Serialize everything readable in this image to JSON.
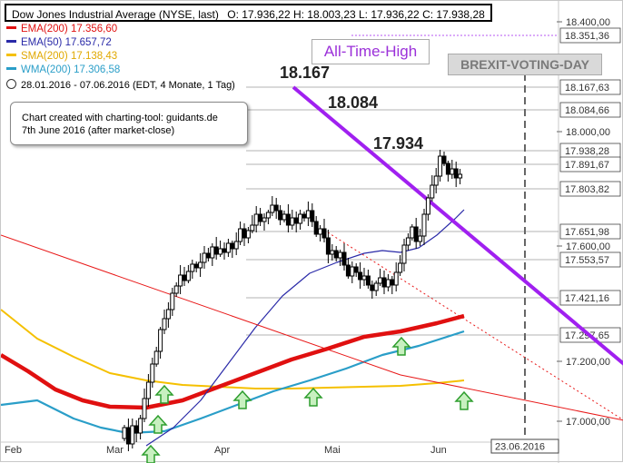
{
  "header": {
    "title": "Dow Jones Industrial Average (NYSE, last)",
    "ohlc": "O: 17.936,22  H: 18.003,23  L: 17.936,22  C: 17.938,28"
  },
  "legend": [
    {
      "label": "EMA(200)",
      "value": "17.356,60",
      "color": "#e01010"
    },
    {
      "label": "EMA(50)",
      "value": "17.657,72",
      "color": "#2a2aa8"
    },
    {
      "label": "SMA(200)",
      "value": "17.138,43",
      "color": "#f5c000"
    },
    {
      "label": "WMA(200)",
      "value": "17.306,58",
      "color": "#2a9ec8"
    }
  ],
  "period": "28.01.2016 - 07.06.2016 (EDT, 4 Monate, 1 Tag)",
  "note": {
    "line1": "Chart created with charting-tool: guidants.de",
    "line2": "7th June 2016 (after market-close)"
  },
  "annotations": {
    "ath": "All-Time-High",
    "brexit": "BREXIT-VOTING-DAY",
    "peak1": "18.167",
    "peak2": "18.084",
    "peak3": "17.934",
    "date_marker": "23.06.2016"
  },
  "colors": {
    "candle": "#000000",
    "trend_purple": "#a020f0",
    "red_trend": "#e81818",
    "ema200": "#e01010",
    "ema50": "#2a2aa8",
    "sma200": "#f5c000",
    "wma200": "#2a9ec8",
    "arrow": "#2e9e2e",
    "arrow_fill": "#c8f0c0"
  },
  "chart_data": {
    "type": "candlestick",
    "x_labels": [
      "Feb",
      "Mar",
      "Apr",
      "Mai",
      "Jun"
    ],
    "y_tick_labels": [
      "18.400,00",
      "18.000,00",
      "17.600,00",
      "17.200,00",
      "17.000,00"
    ],
    "level_labels": [
      "18.351,36",
      "18.167,63",
      "18.084,66",
      "17.938,28",
      "17.891,67",
      "17.803,82",
      "17.651,98",
      "17.553,57",
      "17.421,16",
      "17.297,65"
    ],
    "series": [
      {
        "name": "EMA(200)",
        "last": 17356.6
      },
      {
        "name": "EMA(50)",
        "last": 17657.72
      },
      {
        "name": "SMA(200)",
        "last": 17138.43
      },
      {
        "name": "WMA(200)",
        "last": 17306.58
      }
    ],
    "peaks": [
      18167,
      18084,
      17934
    ],
    "ylim": [
      16900,
      18450
    ],
    "grid": false,
    "legend": "top-left"
  }
}
